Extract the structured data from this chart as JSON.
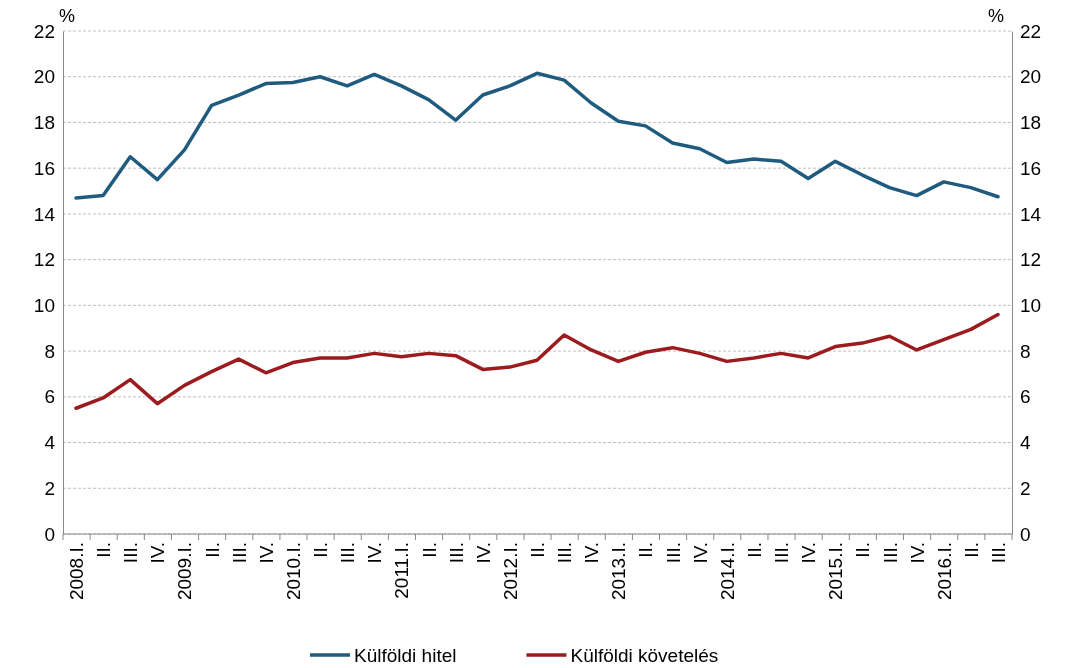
{
  "chart_data": {
    "type": "line",
    "categories": [
      "2008.I.",
      "II.",
      "III.",
      "IV.",
      "2009.I.",
      "II.",
      "III.",
      "IV.",
      "2010.I.",
      "II.",
      "III.",
      "IV.",
      "2011.I.",
      "II.",
      "III.",
      "IV.",
      "2012.I.",
      "II.",
      "III.",
      "IV.",
      "2013.I.",
      "II.",
      "III.",
      "IV.",
      "2014.I.",
      "II.",
      "III.",
      "IV.",
      "2015.I.",
      "II.",
      "III.",
      "IV.",
      "2016.I.",
      "II.",
      "III."
    ],
    "series": [
      {
        "name": "Külföldi hitel",
        "color": "#1f5b7f",
        "values": [
          14.7,
          14.8,
          16.5,
          15.5,
          16.8,
          18.75,
          19.2,
          19.7,
          19.75,
          20.0,
          19.6,
          20.1,
          19.6,
          19.0,
          18.1,
          19.2,
          19.6,
          20.15,
          19.85,
          18.85,
          18.05,
          17.85,
          17.1,
          16.85,
          16.25,
          16.4,
          16.3,
          15.55,
          16.3,
          15.7,
          15.15,
          14.8,
          15.4,
          15.15,
          14.75
        ]
      },
      {
        "name": "Külföldi követelés",
        "color": "#9b1b1e",
        "values": [
          5.5,
          5.95,
          6.75,
          5.7,
          6.5,
          7.1,
          7.65,
          7.05,
          7.5,
          7.7,
          7.7,
          7.9,
          7.75,
          7.9,
          7.8,
          7.2,
          7.3,
          7.6,
          8.7,
          8.05,
          7.55,
          7.95,
          8.15,
          7.9,
          7.55,
          7.7,
          7.9,
          7.7,
          8.2,
          8.35,
          8.65,
          8.05,
          8.5,
          8.95,
          9.6
        ]
      }
    ],
    "ylabel": "%",
    "y2label": "%",
    "ylim": [
      0,
      22
    ],
    "yticks": [
      0,
      2,
      4,
      6,
      8,
      10,
      12,
      14,
      16,
      18,
      20,
      22
    ],
    "y2lim": [
      0,
      22
    ],
    "y2ticks": [
      0,
      2,
      4,
      6,
      8,
      10,
      12,
      14,
      16,
      18,
      20,
      22
    ],
    "grid": "y",
    "legend": "bottom",
    "marker": "none",
    "line_style": "solid"
  }
}
